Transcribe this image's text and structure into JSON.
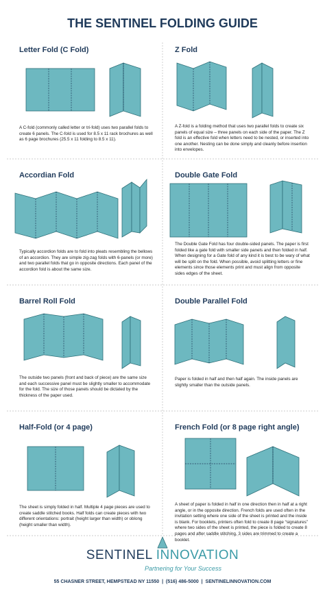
{
  "header": {
    "title": "THE SENTINEL FOLDING GUIDE"
  },
  "sections": [
    {
      "heading": "Letter Fold (C Fold)",
      "description": "A C-fold (commonly called letter or tri-fold) uses two parallel folds to create 6 panels. The C-fold is used for 8.5 x 11 rack brochures as well as 6 page brochures (25.5 x 11 folding to 8.5 x 11)."
    },
    {
      "heading": "Z Fold",
      "description": "A Z-fold is a folding method that uses two parallel folds to create six panels of equal size – three panels on each side of the paper. The Z fold is an effective fold when letters need to be nested, or inserted into one another. Nesting can be done simply and cleanly before insertion into envelopes."
    },
    {
      "heading": "Accordian Fold",
      "description": "Typically accordion folds are to fold into pleats resembling the bellows of an accordion. They are simple zig-zag folds with 6-panels (or more) and two parallel folds that go in opposite directions. Each panel of the accordion fold is about the same size."
    },
    {
      "heading": "Double Gate Fold",
      "description": "The Double Gate Fold has four double-sided panels. The paper is first folded like a gate fold with smaller side panels and then folded in half. When designing for a Gate fold of any kind it is best to be wary of what will be split on the fold. When possible, avoid splitting letters or fine elements since those elements print and must align from opposite sides edges of the sheet."
    },
    {
      "heading": "Barrel Roll Fold",
      "description": "The outside two panels (front and back of piece) are the same size and each successive panel must be slightly smaller to accommodate for the fold. The size of those panels should be dictated by the thickness of the paper used."
    },
    {
      "heading": "Double Parallel Fold",
      "description": "Paper is folded in half and then half again. The inside panels are slightly smaller than the outside panels."
    },
    {
      "heading": "Half-Fold (or 4 page)",
      "description": "The sheet is simply folded in half. Multiple 4 page pieces are used to create saddle stitched books. Half folds can create pieces with two different orientations: portrait (height larger than width) or oblong (height smaller than width)."
    },
    {
      "heading": "French Fold (or 8 page right angle)",
      "description": "A sheet of paper is folded in half in one direction then in half at a right angle, or in the opposite direction. French folds are used often in the invitation setting where one side of the sheet is printed and the inside is blank. For booklets, printers often fold to create 8 page “signatures” where two sides of the sheet is printed, the piece is folded to create 8 pages and after saddle stitching, 3 sides are trimmed to create a booklet."
    }
  ],
  "footer": {
    "brand_first": "SENTINEL",
    "brand_second": "INNOVATION",
    "tagline": "Partnering for Your Success",
    "address": "55 CHASNER STREET, HEMPSTEAD NY 11550  |  (516) 486-5000  |  SENTINELINNOVATION.COM"
  }
}
